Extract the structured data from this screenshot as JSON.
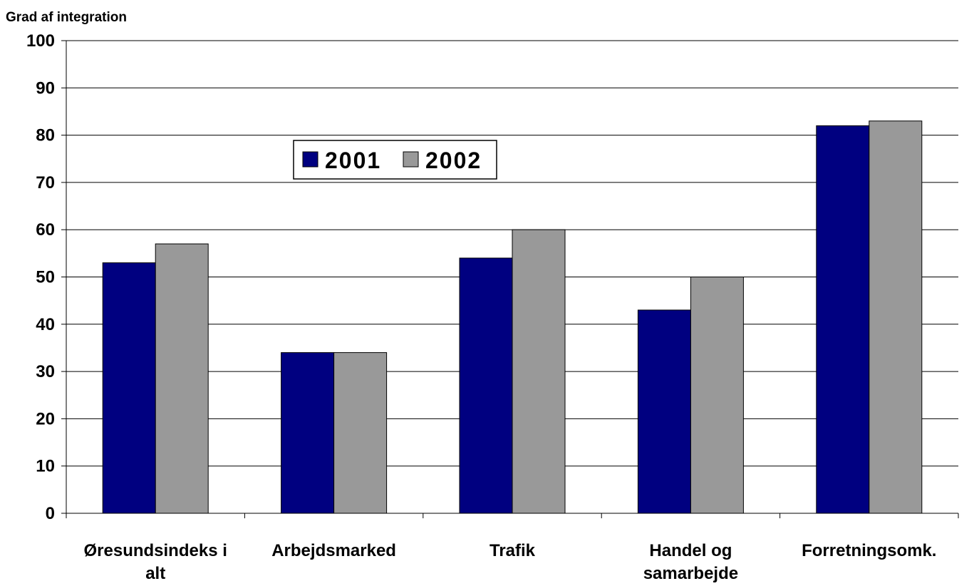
{
  "chart_data": {
    "type": "bar",
    "title": "",
    "ylabel": "Grad af integration",
    "xlabel": "",
    "ylim": [
      0,
      100
    ],
    "yticks": [
      0,
      10,
      20,
      30,
      40,
      50,
      60,
      70,
      80,
      90,
      100
    ],
    "categories": [
      [
        "Øresundsindeks i",
        "alt"
      ],
      [
        "Arbejdsmarked"
      ],
      [
        "Trafik"
      ],
      [
        "Handel og",
        "samarbejde"
      ],
      [
        "Forretningsomk."
      ]
    ],
    "series": [
      {
        "name": "2001",
        "color": "#000080",
        "values": [
          53,
          34,
          54,
          43,
          82
        ]
      },
      {
        "name": "2002",
        "color": "#999999",
        "values": [
          57,
          34,
          60,
          50,
          83
        ]
      }
    ],
    "grid": true,
    "legend": "top-center"
  }
}
